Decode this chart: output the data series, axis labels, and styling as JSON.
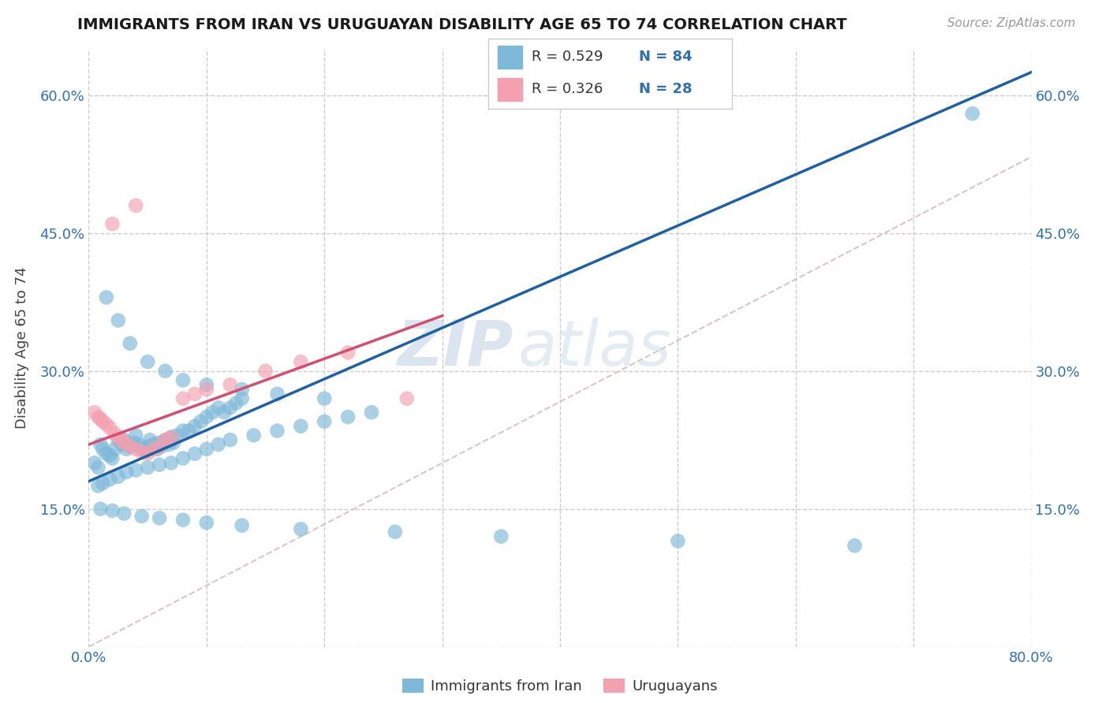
{
  "title": "IMMIGRANTS FROM IRAN VS URUGUAYAN DISABILITY AGE 65 TO 74 CORRELATION CHART",
  "source": "Source: ZipAtlas.com",
  "ylabel": "Disability Age 65 to 74",
  "legend_label1": "Immigrants from Iran",
  "legend_label2": "Uruguayans",
  "legend_R1": "R = 0.529",
  "legend_N1": "N = 84",
  "legend_R2": "R = 0.326",
  "legend_N2": "N = 28",
  "xmin": 0.0,
  "xmax": 0.8,
  "ymin": 0.0,
  "ymax": 0.65,
  "xtick_positions": [
    0.0,
    0.1,
    0.2,
    0.3,
    0.4,
    0.5,
    0.6,
    0.7,
    0.8
  ],
  "xticklabels": [
    "0.0%",
    "",
    "",
    "",
    "",
    "",
    "",
    "",
    "80.0%"
  ],
  "ytick_positions": [
    0.0,
    0.15,
    0.3,
    0.45,
    0.6
  ],
  "yticklabels": [
    "",
    "15.0%",
    "30.0%",
    "45.0%",
    "60.0%"
  ],
  "color_blue": "#7db8d8",
  "color_pink": "#f4a0b0",
  "color_blue_line": "#2060a0",
  "color_pink_line": "#d05070",
  "color_diag": "#d8c0c0",
  "watermark_zip": "ZIP",
  "watermark_atlas": "atlas",
  "blue_line_x0": 0.0,
  "blue_line_y0": 0.18,
  "blue_line_x1": 0.8,
  "blue_line_y1": 0.625,
  "pink_line_x0": 0.0,
  "pink_line_y0": 0.22,
  "pink_line_x1": 0.3,
  "pink_line_y1": 0.36,
  "blue_x": [
    0.005,
    0.008,
    0.01,
    0.012,
    0.015,
    0.018,
    0.02,
    0.022,
    0.025,
    0.028,
    0.03,
    0.032,
    0.035,
    0.038,
    0.04,
    0.042,
    0.045,
    0.048,
    0.05,
    0.052,
    0.055,
    0.058,
    0.06,
    0.062,
    0.065,
    0.068,
    0.07,
    0.072,
    0.075,
    0.08,
    0.085,
    0.09,
    0.095,
    0.1,
    0.105,
    0.11,
    0.115,
    0.12,
    0.125,
    0.13,
    0.008,
    0.012,
    0.018,
    0.025,
    0.032,
    0.04,
    0.05,
    0.06,
    0.07,
    0.08,
    0.09,
    0.1,
    0.11,
    0.12,
    0.14,
    0.16,
    0.18,
    0.2,
    0.22,
    0.24,
    0.015,
    0.025,
    0.035,
    0.05,
    0.065,
    0.08,
    0.1,
    0.13,
    0.16,
    0.2,
    0.01,
    0.02,
    0.03,
    0.045,
    0.06,
    0.08,
    0.1,
    0.13,
    0.18,
    0.26,
    0.35,
    0.5,
    0.65,
    0.75
  ],
  "blue_y": [
    0.2,
    0.195,
    0.22,
    0.215,
    0.21,
    0.208,
    0.205,
    0.215,
    0.225,
    0.22,
    0.225,
    0.215,
    0.218,
    0.222,
    0.23,
    0.22,
    0.215,
    0.212,
    0.218,
    0.225,
    0.22,
    0.215,
    0.222,
    0.218,
    0.225,
    0.22,
    0.228,
    0.222,
    0.23,
    0.235,
    0.235,
    0.24,
    0.245,
    0.25,
    0.255,
    0.26,
    0.255,
    0.26,
    0.265,
    0.27,
    0.175,
    0.178,
    0.182,
    0.185,
    0.19,
    0.192,
    0.195,
    0.198,
    0.2,
    0.205,
    0.21,
    0.215,
    0.22,
    0.225,
    0.23,
    0.235,
    0.24,
    0.245,
    0.25,
    0.255,
    0.38,
    0.355,
    0.33,
    0.31,
    0.3,
    0.29,
    0.285,
    0.28,
    0.275,
    0.27,
    0.15,
    0.148,
    0.145,
    0.142,
    0.14,
    0.138,
    0.135,
    0.132,
    0.128,
    0.125,
    0.12,
    0.115,
    0.11,
    0.58
  ],
  "pink_x": [
    0.005,
    0.008,
    0.01,
    0.012,
    0.015,
    0.018,
    0.022,
    0.025,
    0.028,
    0.03,
    0.035,
    0.04,
    0.045,
    0.05,
    0.055,
    0.06,
    0.065,
    0.07,
    0.08,
    0.09,
    0.1,
    0.12,
    0.15,
    0.18,
    0.22,
    0.27,
    0.02,
    0.04
  ],
  "pink_y": [
    0.255,
    0.25,
    0.248,
    0.245,
    0.242,
    0.238,
    0.232,
    0.228,
    0.225,
    0.222,
    0.218,
    0.215,
    0.212,
    0.21,
    0.215,
    0.218,
    0.225,
    0.228,
    0.27,
    0.275,
    0.28,
    0.285,
    0.3,
    0.31,
    0.32,
    0.27,
    0.46,
    0.48
  ]
}
